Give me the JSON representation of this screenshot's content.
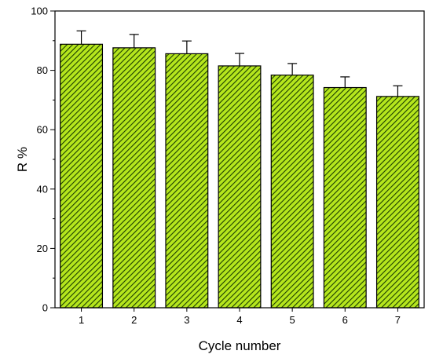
{
  "chart_data": {
    "type": "bar",
    "title": "",
    "xlabel": "Cycle number",
    "ylabel": "R %",
    "categories": [
      "1",
      "2",
      "3",
      "4",
      "5",
      "6",
      "7"
    ],
    "values": [
      88.8,
      87.6,
      85.6,
      81.5,
      78.4,
      74.2,
      71.2
    ],
    "error": [
      4.5,
      4.5,
      4.3,
      4.2,
      3.9,
      3.6,
      3.6
    ],
    "ylim": [
      0,
      100
    ],
    "yticks": [
      "0",
      "20",
      "40",
      "60",
      "80",
      "100"
    ],
    "grid": false,
    "legend": "none",
    "colors": {
      "bar_fill": "#b5e61d",
      "hatch": "#1a3d00",
      "outline": "#000000"
    }
  }
}
